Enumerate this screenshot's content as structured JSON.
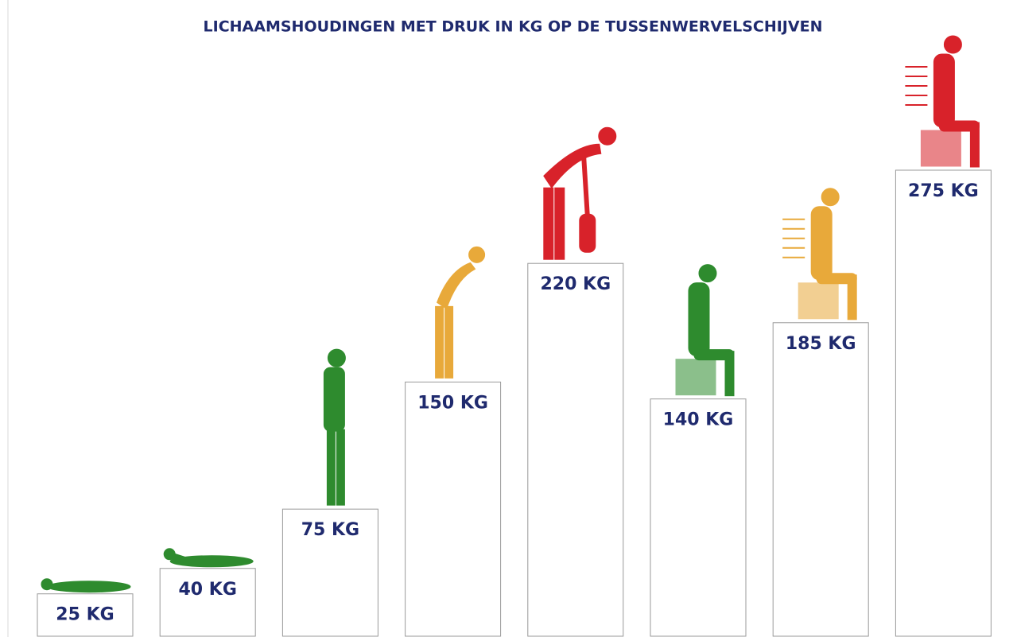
{
  "chart_data": {
    "type": "bar",
    "title": "LICHAAMSHOUDINGEN MET DRUK IN KG OP DE TUSSENWERVELSCHIJVEN",
    "values": [
      25,
      40,
      75,
      150,
      220,
      140,
      185,
      275
    ],
    "value_labels": [
      "25 KG",
      "40 KG",
      "75 KG",
      "150 KG",
      "220 KG",
      "140 KG",
      "185 KG",
      "275 KG"
    ],
    "color": "#ffffff",
    "figure_colors": [
      "#2e8b2e",
      "#2e8b2e",
      "#2e8b2e",
      "#e8a93a",
      "#d8222a",
      "#2e8b2e",
      "#e8a93a",
      "#d8222a"
    ]
  }
}
